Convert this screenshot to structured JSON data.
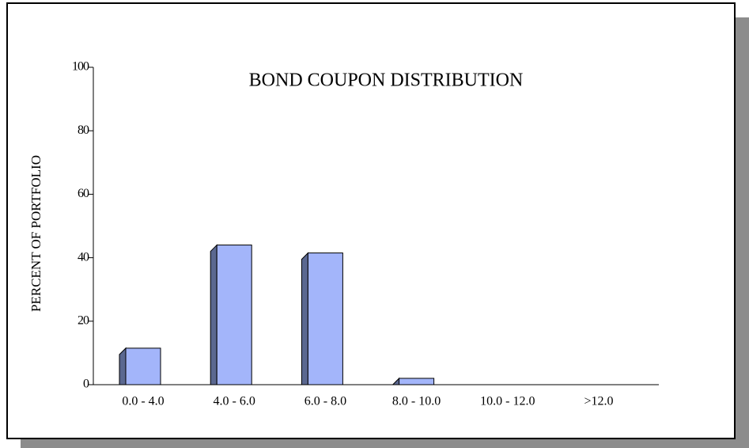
{
  "chart_data": {
    "type": "bar",
    "title": "BOND COUPON DISTRIBUTION",
    "y_label": "PERCENT OF PORTFOLIO",
    "categories": [
      "0.0 - 4.0",
      "4.0 - 6.0",
      "6.0 - 8.0",
      "8.0 - 10.0",
      "10.0 - 12.0",
      ">12.0"
    ],
    "values": [
      11.5,
      44,
      41.5,
      2,
      0,
      0
    ],
    "color": "#a3b5fa",
    "ylim": [
      0,
      100
    ],
    "yticks": [
      0,
      20,
      40,
      60,
      80,
      100
    ],
    "grid": false
  }
}
